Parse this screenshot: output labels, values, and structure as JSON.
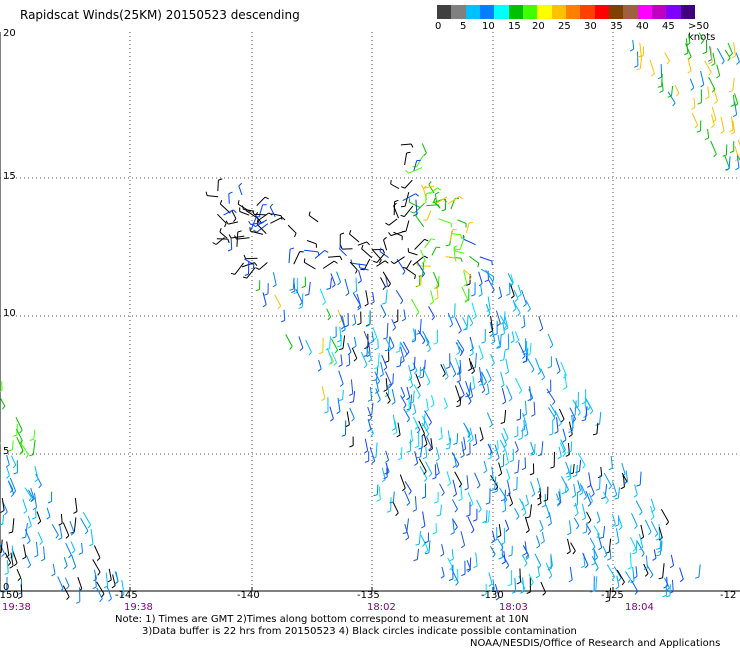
{
  "title": "Rapidscat Winds(25KM) 20150523 descending",
  "colorbar": {
    "colors": [
      "#404040",
      "#808080",
      "#00c0ff",
      "#0080ff",
      "#00ffff",
      "#00c000",
      "#40ff00",
      "#ffff00",
      "#ffc000",
      "#ff8000",
      "#ff4000",
      "#ff0000",
      "#804000",
      "#a06040",
      "#ff00ff",
      "#c000c0",
      "#8000ff",
      "#400080"
    ],
    "labels": [
      "0",
      "5",
      "10",
      "15",
      "20",
      "25",
      "30",
      "35",
      "40",
      "45",
      ">50 knots"
    ]
  },
  "y_ticks": [
    "20",
    "15",
    "10",
    "5",
    "0"
  ],
  "x_ticks": [
    "-150",
    "-145",
    "-140",
    "-135",
    "-130",
    "-125",
    "-12"
  ],
  "time_labels": [
    "19:38",
    "19:38",
    "18:02",
    "18:03",
    "18:04"
  ],
  "notes": {
    "line1": "Note: 1) Times are GMT 2)Times along bottom correspond to measurement at 10N",
    "line2": "3)Data buffer is 22 hrs from 20150523 4) Black circles indicate possible contamination",
    "credit": "NOAA/NESDIS/Office of Research and Applications"
  },
  "icons": [
    "wind-barb-icon"
  ]
}
